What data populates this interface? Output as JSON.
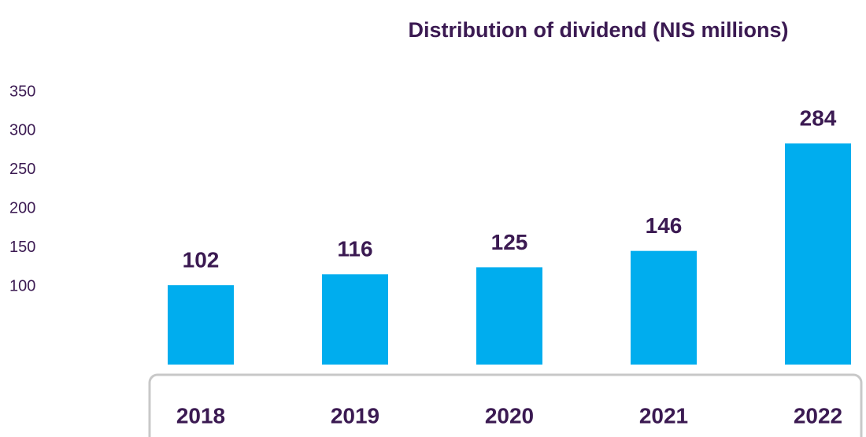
{
  "chart_data": {
    "type": "bar",
    "title": "Distribution of dividend (NIS millions)",
    "categories": [
      "2018",
      "2019",
      "2020",
      "2021",
      "2022"
    ],
    "values": [
      102,
      116,
      125,
      146,
      284
    ],
    "color": "#00adee",
    "ylim": [
      0,
      350
    ],
    "yticks": [
      100,
      150,
      200,
      250,
      300,
      350
    ],
    "grid": false
  }
}
